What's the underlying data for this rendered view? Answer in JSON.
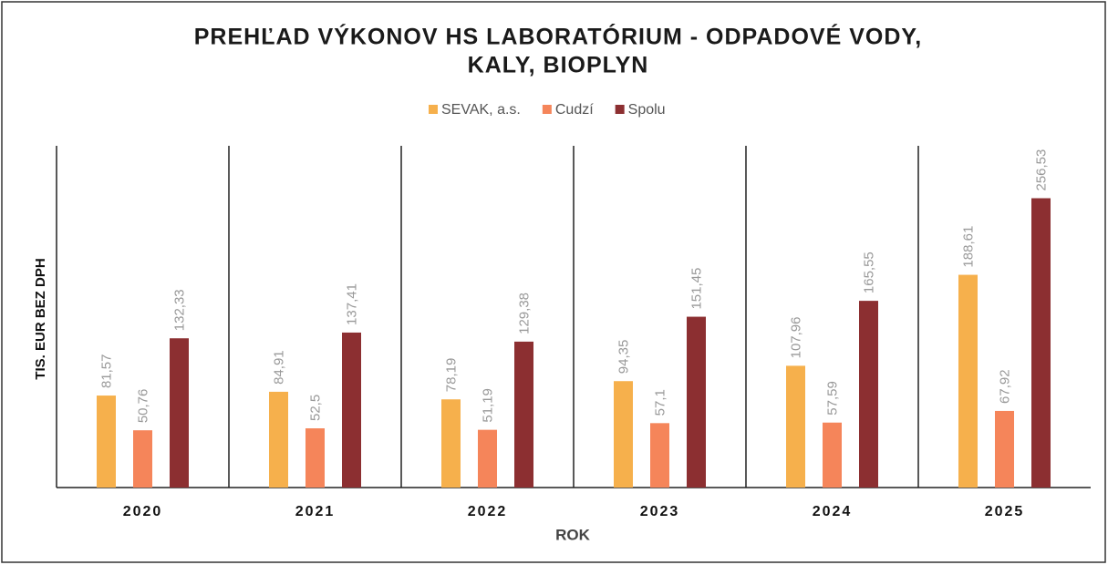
{
  "chart_data": {
    "type": "bar",
    "title": [
      "PREHĽAD VÝKONOV HS LABORATÓRIUM - ODPADOVÉ VODY,",
      "KALY, BIOPLYN"
    ],
    "x_label": "ROK",
    "y_label": "TIS. EUR BEZ DPH",
    "categories": [
      "2020",
      "2021",
      "2022",
      "2023",
      "2024",
      "2025"
    ],
    "series": [
      {
        "name": "SEVAK, a.s.",
        "color": "#f6b04c",
        "values": [
          81.57,
          84.91,
          78.19,
          94.35,
          107.96,
          188.61
        ],
        "value_labels": [
          "81,57",
          "84,91",
          "78,19",
          "94,35",
          "107,96",
          "188,61"
        ]
      },
      {
        "name": "Cudzí",
        "color": "#f5855a",
        "values": [
          50.76,
          52.5,
          51.19,
          57.1,
          57.59,
          67.92
        ],
        "value_labels": [
          "50,76",
          "52,5",
          "51,19",
          "57,1",
          "57,59",
          "67,92"
        ]
      },
      {
        "name": "Spolu",
        "color": "#8c2f31",
        "values": [
          132.33,
          137.41,
          129.38,
          151.45,
          165.55,
          256.53
        ],
        "value_labels": [
          "132,33",
          "137,41",
          "129,38",
          "151,45",
          "165,55",
          "256,53"
        ]
      }
    ],
    "ylim": [
      0,
      303
    ],
    "legend": "top"
  }
}
